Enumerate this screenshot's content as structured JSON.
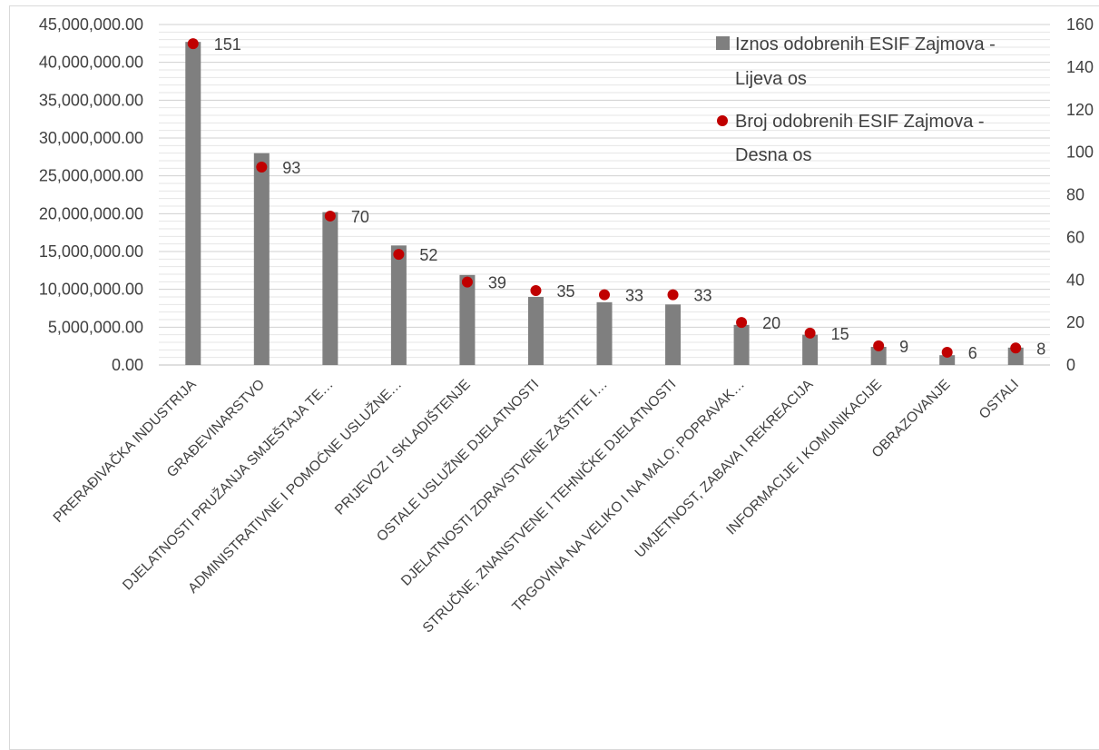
{
  "chart_data": {
    "type": "bar",
    "title": "",
    "categories": [
      "PRERAĐIVAČKA INDUSTRIJA",
      "GRAĐEVINARSTVO",
      "DJELATNOSTI PRUŽANJA SMJEŠTAJA TE…",
      "ADMINISTRATIVNE I POMOĆNE USLUŽNE…",
      "PRIJEVOZ I SKLADIŠTENJE",
      "OSTALE USLUŽNE DJELATNOSTI",
      "DJELATNOSTI ZDRAVSTVENE ZAŠTITE I…",
      "STRUČNE, ZNANSTVENE I TEHNIČKE DJELATNOSTI",
      "TRGOVINA NA VELIKO I NA MALO; POPRAVAK…",
      "UMJETNOST, ZABAVA I REKREACIJA",
      "INFORMACIJE I KOMUNIKACIJE",
      "OBRAZOVANJE",
      "OSTALI"
    ],
    "series": [
      {
        "name": "Iznos odobrenih ESIF Zajmova - Lijeva os",
        "type": "bar",
        "axis": "left",
        "color": "#7f7f7f",
        "values": [
          42700000,
          28000000,
          20200000,
          15800000,
          11900000,
          9000000,
          8300000,
          8000000,
          5300000,
          4000000,
          2400000,
          1300000,
          2300000
        ]
      },
      {
        "name": "Broj odobrenih ESIF Zajmova - Desna os",
        "type": "scatter",
        "axis": "right",
        "color": "#c00000",
        "values": [
          151,
          93,
          70,
          52,
          39,
          35,
          33,
          33,
          20,
          15,
          9,
          6,
          8
        ],
        "data_labels": [
          "151",
          "93",
          "70",
          "52",
          "39",
          "35",
          "33",
          "33",
          "20",
          "15",
          "9",
          "6",
          "8"
        ]
      }
    ],
    "y_left": {
      "ylim": [
        0,
        45000000
      ],
      "ticks": [
        "0.00",
        "5,000,000.00",
        "10,000,000.00",
        "15,000,000.00",
        "20,000,000.00",
        "25,000,000.00",
        "30,000,000.00",
        "35,000,000.00",
        "40,000,000.00",
        "45,000,000.00"
      ]
    },
    "y_right": {
      "ylim": [
        0,
        160
      ],
      "ticks": [
        "0",
        "20",
        "40",
        "60",
        "80",
        "100",
        "120",
        "140",
        "160"
      ]
    },
    "legend": {
      "placement": "top-right",
      "entries": [
        {
          "line1": "Iznos odobrenih ESIF Zajmova -",
          "line2": "Lijeva os",
          "marker": "square"
        },
        {
          "line1": "Broj odobrenih ESIF Zajmova -",
          "line2": "Desna os",
          "marker": "dot"
        }
      ]
    },
    "grid": true
  }
}
